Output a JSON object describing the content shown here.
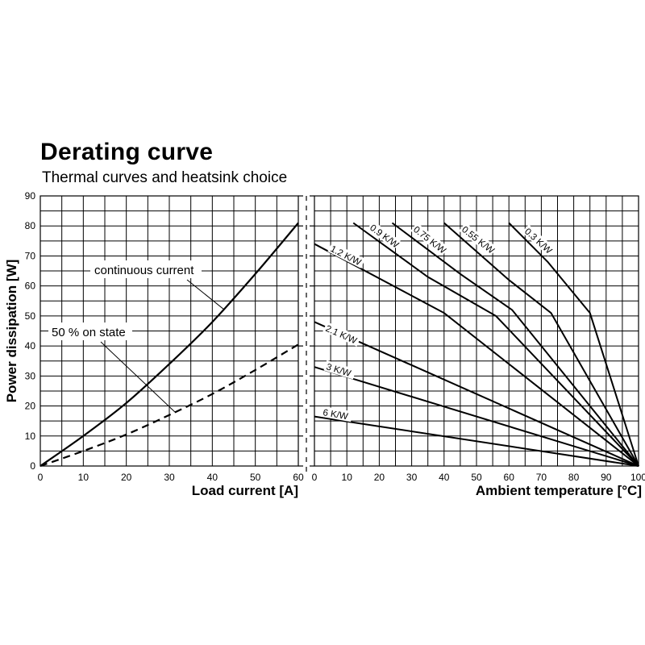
{
  "header": {
    "title": "Derating curve",
    "subtitle": "Thermal curves and heatsink choice"
  },
  "chart_data": [
    {
      "type": "line",
      "title": "",
      "xlabel": "Load current [A]",
      "ylabel": "Power dissipation [W]",
      "xlim": [
        0,
        60
      ],
      "ylim": [
        0,
        90
      ],
      "xticks": [
        0,
        10,
        20,
        30,
        40,
        50,
        60
      ],
      "yticks": [
        0,
        10,
        20,
        30,
        40,
        50,
        60,
        70,
        80,
        90
      ],
      "grid": true,
      "series": [
        {
          "name": "continuous current",
          "style": "solid",
          "x": [
            0,
            10,
            20,
            30,
            40,
            50,
            60
          ],
          "y": [
            0,
            10,
            21,
            34,
            48,
            64,
            81
          ]
        },
        {
          "name": "50 % on state",
          "style": "dashed",
          "x": [
            0,
            10,
            20,
            30,
            40,
            50,
            60
          ],
          "y": [
            0,
            5,
            10.5,
            17,
            24,
            32,
            40.5
          ]
        }
      ]
    },
    {
      "type": "line",
      "title": "",
      "xlabel": "Ambient temperature [°C]",
      "ylabel": "Power dissipation [W]",
      "xlim": [
        0,
        100
      ],
      "ylim": [
        0,
        90
      ],
      "xticks": [
        0,
        10,
        20,
        30,
        40,
        50,
        60,
        70,
        80,
        90,
        100
      ],
      "yticks": [
        0,
        10,
        20,
        30,
        40,
        50,
        60,
        70,
        80,
        90
      ],
      "grid": true,
      "series": [
        {
          "name": "0.3 K/W",
          "x": [
            60,
            72,
            85,
            100
          ],
          "y": [
            81,
            68,
            51,
            0
          ]
        },
        {
          "name": "0.55 K/W",
          "x": [
            40,
            60,
            73,
            100
          ],
          "y": [
            81,
            62,
            51,
            0
          ]
        },
        {
          "name": "0.75 K/W",
          "x": [
            24,
            45,
            61,
            100
          ],
          "y": [
            81,
            64,
            52,
            0
          ]
        },
        {
          "name": "0.9 K/W",
          "x": [
            12,
            35,
            56,
            100
          ],
          "y": [
            81,
            63,
            50,
            0
          ]
        },
        {
          "name": "1.2 K/W",
          "x": [
            0,
            40,
            100
          ],
          "y": [
            74,
            51,
            0
          ]
        },
        {
          "name": "2.1 K/W",
          "x": [
            0,
            100
          ],
          "y": [
            48,
            0
          ]
        },
        {
          "name": "3 K/W",
          "x": [
            0,
            100
          ],
          "y": [
            33,
            0
          ]
        },
        {
          "name": "6 K/W",
          "x": [
            0,
            100
          ],
          "y": [
            16.5,
            0
          ]
        }
      ]
    }
  ],
  "annotations": {
    "continuous_label": "continuous current",
    "on_state_label": "50 % on state"
  }
}
